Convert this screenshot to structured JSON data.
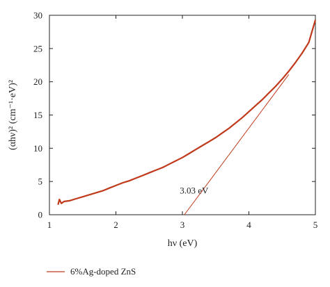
{
  "chart_data": {
    "type": "line",
    "xlabel": "hν (eV)",
    "ylabel": "(αhν)² (cm⁻¹·eV)²",
    "xlim": [
      1,
      5
    ],
    "ylim": [
      0,
      30
    ],
    "xticks": [
      1,
      2,
      3,
      4,
      5
    ],
    "yticks": [
      0,
      5,
      10,
      15,
      20,
      25,
      30
    ],
    "grid": false,
    "legend_position": "bottom-left",
    "series": [
      {
        "name": "6%Ag-doped ZnS",
        "color": "#c0391b",
        "x": [
          1.13,
          1.15,
          1.18,
          1.22,
          1.3,
          1.4,
          1.5,
          1.6,
          1.7,
          1.8,
          1.9,
          2.0,
          2.1,
          2.2,
          2.3,
          2.4,
          2.5,
          2.6,
          2.7,
          2.8,
          2.9,
          3.0,
          3.1,
          3.2,
          3.3,
          3.4,
          3.5,
          3.6,
          3.7,
          3.8,
          3.9,
          4.0,
          4.1,
          4.2,
          4.3,
          4.4,
          4.5,
          4.6,
          4.7,
          4.8,
          4.9,
          5.0
        ],
        "y": [
          1.5,
          2.3,
          1.7,
          2.0,
          2.1,
          2.4,
          2.7,
          3.0,
          3.3,
          3.6,
          4.0,
          4.4,
          4.8,
          5.1,
          5.5,
          5.9,
          6.3,
          6.7,
          7.1,
          7.6,
          8.1,
          8.6,
          9.2,
          9.8,
          10.4,
          11.0,
          11.6,
          12.3,
          13.0,
          13.8,
          14.6,
          15.5,
          16.4,
          17.3,
          18.3,
          19.3,
          20.4,
          21.6,
          22.9,
          24.3,
          25.9,
          29.3
        ]
      }
    ],
    "tangent_line": {
      "color": "#c0391b",
      "x": [
        3.03,
        4.6
      ],
      "y": [
        0,
        21.1
      ]
    },
    "annotation": {
      "text": "3.03 eV",
      "x": 3.4,
      "y": 3.6
    }
  }
}
